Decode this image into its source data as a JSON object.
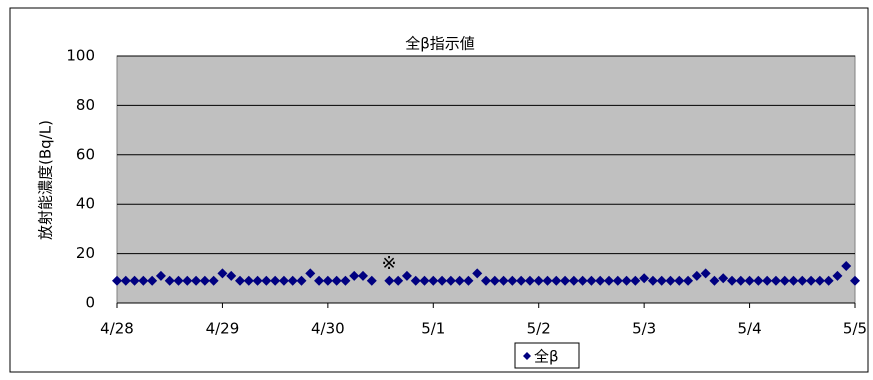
{
  "chart_data": {
    "type": "scatter",
    "title": "全β指示値",
    "y_label": "放射能濃度(Bq/L)",
    "annotation": "※",
    "xlim": [
      0,
      168
    ],
    "xticks": [
      {
        "value": 0,
        "label": "4/28"
      },
      {
        "value": 24,
        "label": "4/29"
      },
      {
        "value": 48,
        "label": "4/30"
      },
      {
        "value": 72,
        "label": "5/1"
      },
      {
        "value": 96,
        "label": "5/2"
      },
      {
        "value": 120,
        "label": "5/3"
      },
      {
        "value": 144,
        "label": "5/4"
      },
      {
        "value": 168,
        "label": "5/5"
      }
    ],
    "ylim": [
      0,
      100
    ],
    "yticks": [
      0,
      20,
      40,
      60,
      80,
      100
    ],
    "grid": true,
    "legend": "bottom",
    "x": [
      0,
      2,
      4,
      6,
      8,
      10,
      12,
      14,
      16,
      18,
      20,
      22,
      24,
      26,
      28,
      30,
      32,
      34,
      36,
      38,
      40,
      42,
      44,
      46,
      48,
      50,
      52,
      54,
      56,
      58,
      60,
      62,
      64,
      66,
      68,
      70,
      72,
      74,
      76,
      78,
      80,
      82,
      84,
      86,
      88,
      90,
      92,
      94,
      96,
      98,
      100,
      102,
      104,
      106,
      108,
      110,
      112,
      114,
      116,
      118,
      120,
      122,
      124,
      126,
      128,
      130,
      132,
      134,
      136,
      138,
      140,
      142,
      144,
      146,
      148,
      150,
      152,
      154,
      156,
      158,
      160,
      162,
      164,
      166,
      168
    ],
    "series": [
      {
        "name": "全β",
        "color": "#000080",
        "values": [
          9,
          9,
          9,
          9,
          9,
          11,
          9,
          9,
          9,
          9,
          9,
          9,
          12,
          11,
          9,
          9,
          9,
          9,
          9,
          9,
          9,
          9,
          12,
          9,
          9,
          9,
          9,
          11,
          11,
          9,
          null,
          9,
          9,
          11,
          9,
          9,
          9,
          9,
          9,
          9,
          9,
          12,
          9,
          9,
          9,
          9,
          9,
          9,
          9,
          9,
          9,
          9,
          9,
          9,
          9,
          9,
          9,
          9,
          9,
          9,
          10,
          9,
          9,
          9,
          9,
          9,
          11,
          12,
          9,
          10,
          9,
          9,
          9,
          9,
          9,
          9,
          9,
          9,
          9,
          9,
          9,
          9,
          11,
          15,
          9
        ]
      }
    ]
  }
}
